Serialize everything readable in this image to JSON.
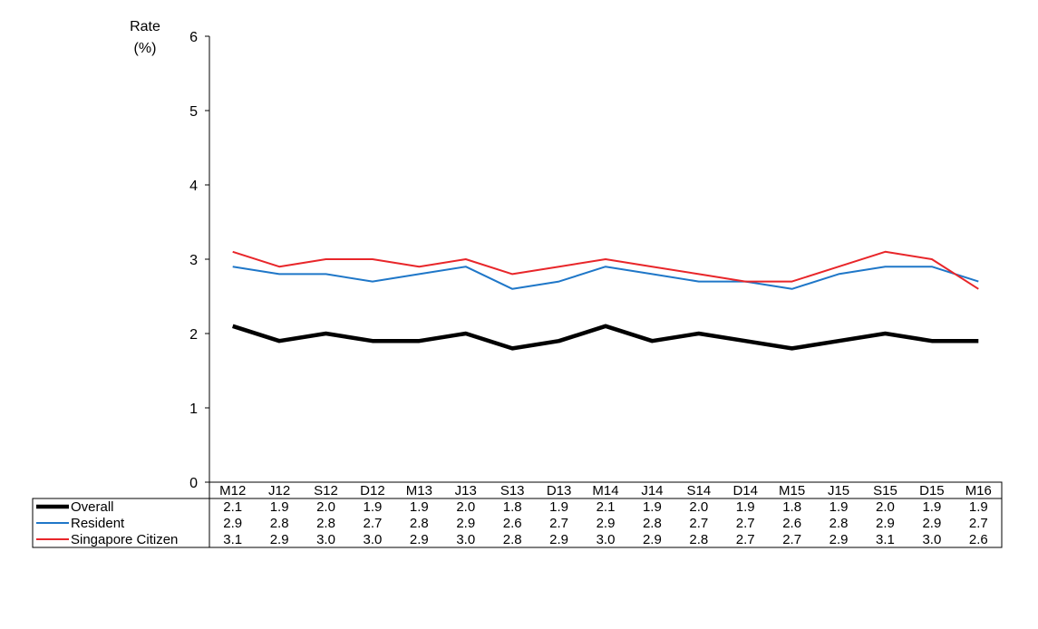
{
  "chart_data": {
    "type": "line",
    "ylabel_line1": "Rate",
    "ylabel_line2": "(%)",
    "ylim": [
      0,
      6
    ],
    "yticks": [
      0,
      1,
      2,
      3,
      4,
      5,
      6
    ],
    "grid": false,
    "legend": "data-table-left",
    "categories": [
      "M12",
      "J12",
      "S12",
      "D12",
      "M13",
      "J13",
      "S13",
      "D13",
      "M14",
      "J14",
      "S14",
      "D14",
      "M15",
      "J15",
      "S15",
      "D15",
      "M16"
    ],
    "series": [
      {
        "name": "Overall",
        "color": "#000000",
        "values": [
          2.1,
          1.9,
          2.0,
          1.9,
          1.9,
          2.0,
          1.8,
          1.9,
          2.1,
          1.9,
          2.0,
          1.9,
          1.8,
          1.9,
          2.0,
          1.9,
          1.9
        ],
        "labels": [
          "2.1",
          "1.9",
          "2.0",
          "1.9",
          "1.9",
          "2.0",
          "1.8",
          "1.9",
          "2.1",
          "1.9",
          "2.0",
          "1.9",
          "1.8",
          "1.9",
          "2.0",
          "1.9",
          "1.9"
        ]
      },
      {
        "name": "Resident",
        "color": "#1f77c8",
        "values": [
          2.9,
          2.8,
          2.8,
          2.7,
          2.8,
          2.9,
          2.6,
          2.7,
          2.9,
          2.8,
          2.7,
          2.7,
          2.6,
          2.8,
          2.9,
          2.9,
          2.7
        ],
        "labels": [
          "2.9",
          "2.8",
          "2.8",
          "2.7",
          "2.8",
          "2.9",
          "2.6",
          "2.7",
          "2.9",
          "2.8",
          "2.7",
          "2.7",
          "2.6",
          "2.8",
          "2.9",
          "2.9",
          "2.7"
        ]
      },
      {
        "name": "Singapore Citizen",
        "color": "#e8262a",
        "values": [
          3.1,
          2.9,
          3.0,
          3.0,
          2.9,
          3.0,
          2.8,
          2.9,
          3.0,
          2.9,
          2.8,
          2.7,
          2.7,
          2.9,
          3.1,
          3.0,
          2.6
        ],
        "labels": [
          "3.1",
          "2.9",
          "3.0",
          "3.0",
          "2.9",
          "3.0",
          "2.8",
          "2.9",
          "3.0",
          "2.9",
          "2.8",
          "2.7",
          "2.7",
          "2.9",
          "3.1",
          "3.0",
          "2.6"
        ]
      }
    ]
  }
}
